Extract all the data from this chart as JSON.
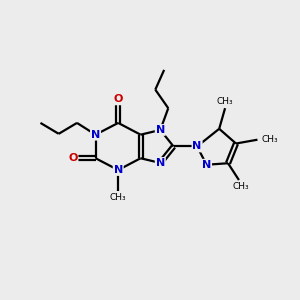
{
  "bg_color": "#ececec",
  "bond_color": "#000000",
  "n_color": "#0000cc",
  "o_color": "#cc0000",
  "figsize": [
    3.0,
    3.0
  ],
  "dpi": 100,
  "xlim": [
    0.0,
    10.0
  ],
  "ylim": [
    1.5,
    8.5
  ]
}
